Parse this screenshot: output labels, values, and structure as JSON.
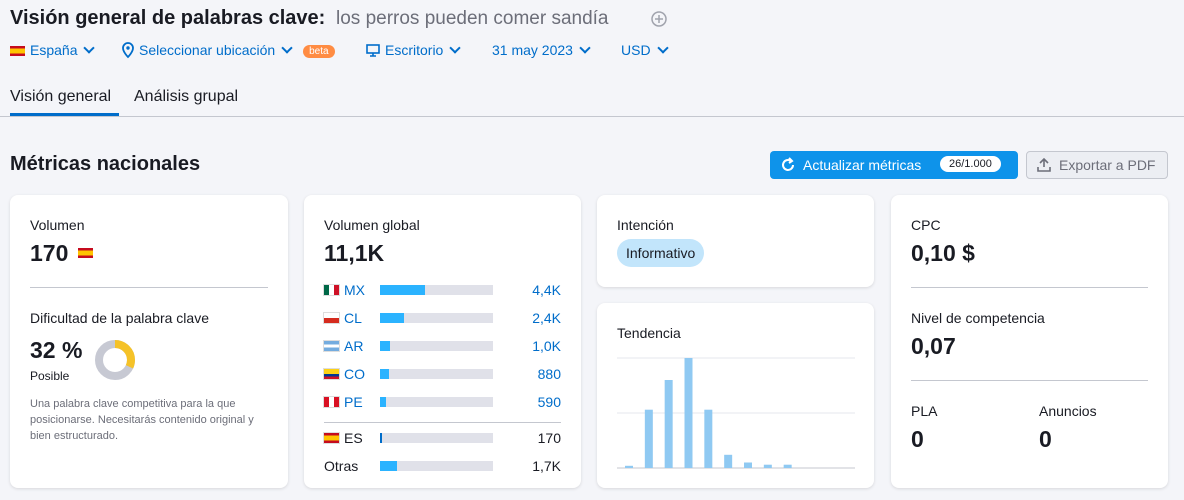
{
  "header": {
    "title": "Visión general de palabras clave:",
    "keyword": "los perros pueden comer sandía"
  },
  "filters": {
    "database": "España",
    "location": "Seleccionar ubicación",
    "beta": "beta",
    "device": "Escritorio",
    "date": "31 may 2023",
    "currency": "USD"
  },
  "tabs": [
    "Visión general",
    "Análisis grupal"
  ],
  "section": {
    "title": "Métricas nacionales",
    "update_button": "Actualizar métricas",
    "quota": "26/1.000",
    "export_button": "Exportar a PDF"
  },
  "volume": {
    "label": "Volumen",
    "value": "170"
  },
  "difficulty": {
    "label": "Dificultad de la palabra clave",
    "percent": {
      "value": 32,
      "label": "32 %"
    },
    "level": "Posible",
    "description": "Una palabra clave competitiva para la que posicionarse. Necesitarás contenido original y bien estructurado."
  },
  "global_volume": {
    "label": "Volumen global",
    "total": {
      "value": 11100,
      "label": "11,1K"
    },
    "countries": [
      {
        "code": "MX",
        "volume": {
          "value": 4400,
          "label": "4,4K"
        }
      },
      {
        "code": "CL",
        "volume": {
          "value": 2400,
          "label": "2,4K"
        }
      },
      {
        "code": "AR",
        "volume": {
          "value": 1000,
          "label": "1,0K"
        }
      },
      {
        "code": "CO",
        "volume": 880
      },
      {
        "code": "PE",
        "volume": 590
      },
      {
        "code": "ES",
        "volume": 170
      },
      {
        "code": "Otras",
        "volume": {
          "value": 1700,
          "label": "1,7K"
        }
      }
    ]
  },
  "intent": {
    "label": "Intención",
    "value": "Informativo"
  },
  "trend": {
    "label": "Tendencia",
    "values": [
      2,
      53,
      80,
      100,
      53,
      12,
      5,
      3,
      3,
      0,
      0,
      0
    ],
    "ylim": [
      0,
      100
    ]
  },
  "cpc": {
    "label": "CPC",
    "value": "0,10 $"
  },
  "competition": {
    "label": "Nivel de competencia",
    "value": "0,07"
  },
  "pla": {
    "label": "PLA",
    "value": "0"
  },
  "ads": {
    "label": "Anuncios",
    "value": "0"
  }
}
